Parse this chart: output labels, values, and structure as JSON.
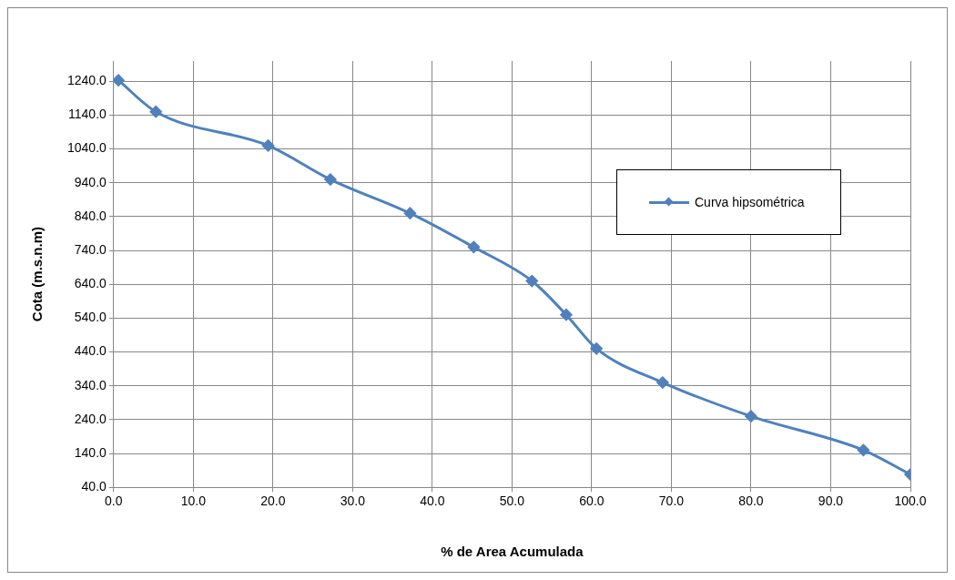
{
  "chart_data": {
    "type": "line",
    "xlabel": "% de Area Acumulada",
    "ylabel": "Cota (m.s.n.m)",
    "xlim": [
      0,
      100
    ],
    "xticks": [
      {
        "value": 0,
        "label": "0.0"
      },
      {
        "value": 10,
        "label": "10.0"
      },
      {
        "value": 20,
        "label": "20.0"
      },
      {
        "value": 30,
        "label": "30.0"
      },
      {
        "value": 40,
        "label": "40.0"
      },
      {
        "value": 50,
        "label": "50.0"
      },
      {
        "value": 60,
        "label": "60.0"
      },
      {
        "value": 70,
        "label": "70.0"
      },
      {
        "value": 80,
        "label": "80.0"
      },
      {
        "value": 90,
        "label": "90.0"
      },
      {
        "value": 100,
        "label": "100.0"
      }
    ],
    "ylim": [
      40,
      1300
    ],
    "yticks": [
      {
        "value": 40,
        "label": "40.0"
      },
      {
        "value": 140,
        "label": "140.0"
      },
      {
        "value": 240,
        "label": "240.0"
      },
      {
        "value": 340,
        "label": "340.0"
      },
      {
        "value": 440,
        "label": "440.0"
      },
      {
        "value": 540,
        "label": "540.0"
      },
      {
        "value": 640,
        "label": "640.0"
      },
      {
        "value": 740,
        "label": "740.0"
      },
      {
        "value": 840,
        "label": "840.0"
      },
      {
        "value": 940,
        "label": "940.0"
      },
      {
        "value": 1040,
        "label": "1040.0"
      },
      {
        "value": 1140,
        "label": "1140.0"
      },
      {
        "value": 1240,
        "label": "1240.0"
      }
    ],
    "series": [
      {
        "name": "Curva hipsométrica",
        "color": "#4f81bd",
        "x": [
          0.6,
          5.3,
          19.4,
          27.2,
          37.2,
          45.2,
          52.5,
          56.8,
          60.6,
          68.9,
          80.0,
          94.1,
          100
        ],
        "values": [
          1243,
          1150,
          1050,
          950,
          850,
          750,
          650,
          550,
          450,
          350,
          250,
          150,
          78
        ]
      }
    ],
    "grid": true,
    "legend": "right",
    "marker": "diamond",
    "line_style": "solid"
  }
}
